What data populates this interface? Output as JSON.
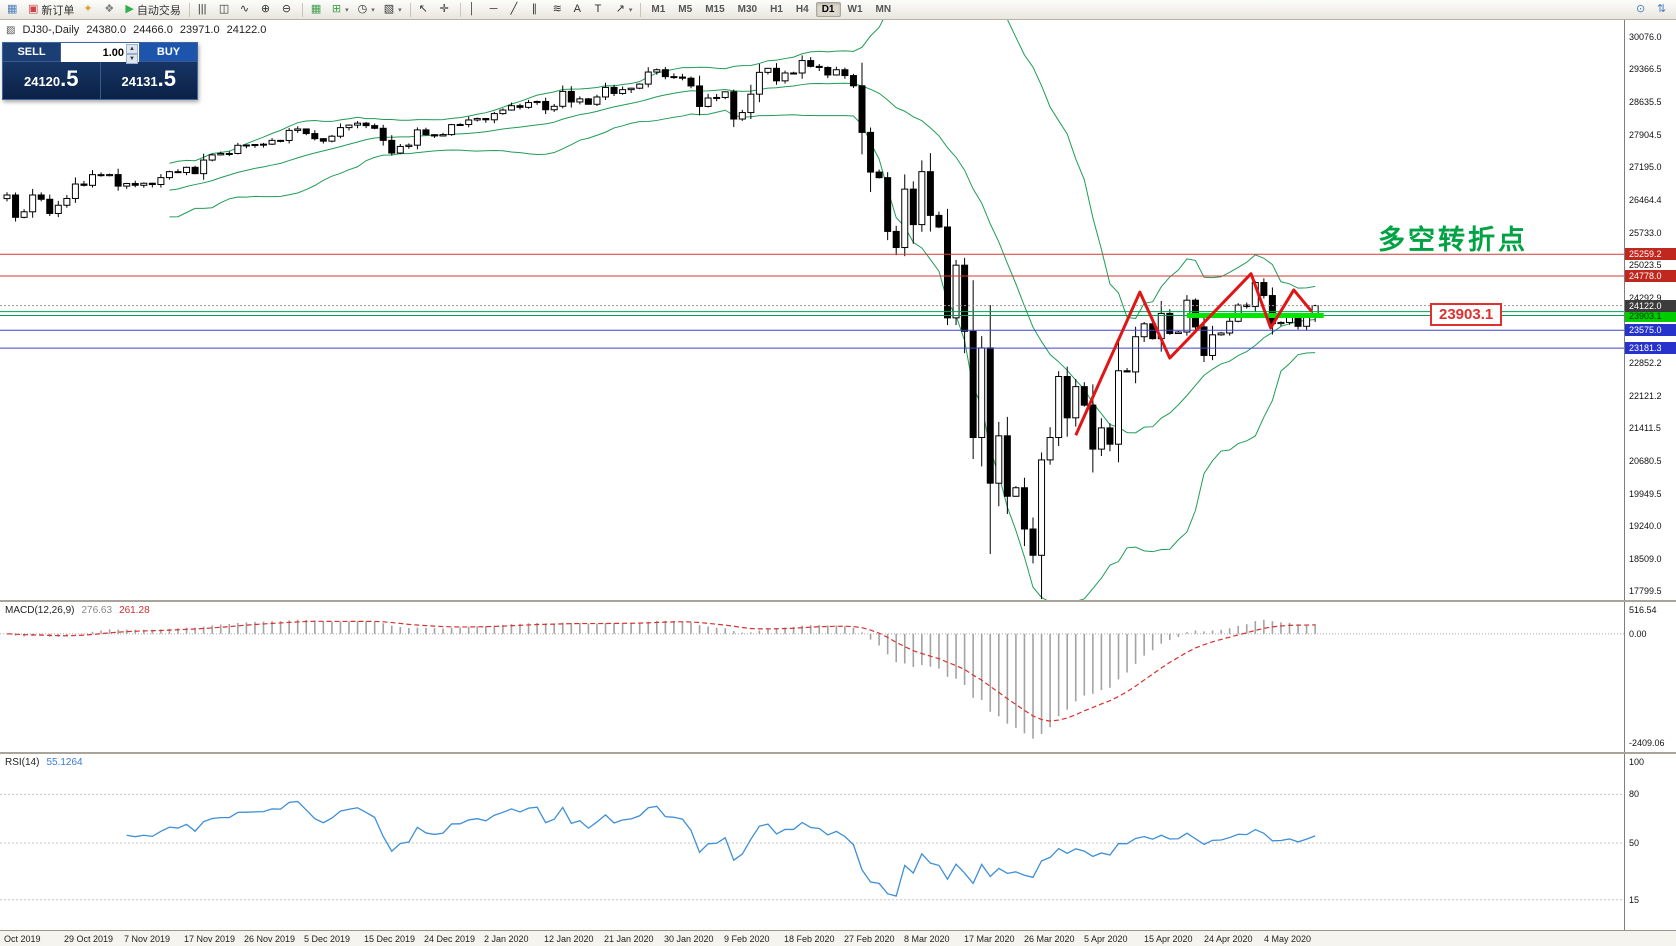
{
  "icons": {
    "up": "▲",
    "down": "▼",
    "caret": "▾",
    "chart_header": "▨"
  },
  "toolbar": {
    "groups": [
      {
        "items": [
          {
            "name": "chart-window-icon",
            "glyph": "▦",
            "c": "#4a7ebb"
          },
          {
            "name": "new-order-button",
            "glyph": "▣",
            "c": "#c44",
            "label": "新订单"
          },
          {
            "name": "metaeditor-icon",
            "glyph": "✦",
            "c": "#d9a42a"
          },
          {
            "name": "terminal-icon",
            "glyph": "❖",
            "c": "#7d7d7d"
          },
          {
            "name": "autotrading-button",
            "glyph": "▶",
            "c": "#2fae4a",
            "label": "自动交易"
          }
        ]
      },
      {
        "items": [
          {
            "name": "bars-chart-icon",
            "glyph": "|||"
          },
          {
            "name": "candlestick-chart-icon",
            "glyph": "◫"
          },
          {
            "name": "line-chart-icon",
            "glyph": "∿"
          },
          {
            "name": "zoom-in-icon",
            "glyph": "⊕"
          },
          {
            "name": "zoom-out-icon",
            "glyph": "⊖"
          }
        ]
      },
      {
        "items": [
          {
            "name": "auto-arrange-icon",
            "glyph": "▦",
            "c": "#3f9e4d"
          },
          {
            "name": "indicators-button",
            "glyph": "⊞",
            "c": "#3f9e4d",
            "caret": true
          },
          {
            "name": "periods-button",
            "glyph": "◷",
            "caret": true
          },
          {
            "name": "templates-button",
            "glyph": "▧",
            "caret": true
          }
        ]
      },
      {
        "items": [
          {
            "name": "cursor-icon",
            "glyph": "↖"
          },
          {
            "name": "crosshair-icon",
            "glyph": "✛"
          }
        ]
      },
      {
        "items": [
          {
            "name": "vertical-line-tool",
            "glyph": "│"
          },
          {
            "name": "horizontal-line-tool",
            "glyph": "─"
          },
          {
            "name": "trendline-tool",
            "glyph": "╱"
          },
          {
            "name": "channel-tool",
            "glyph": "∥"
          },
          {
            "name": "fibonacci-tool",
            "glyph": "≋"
          },
          {
            "name": "text-tool",
            "glyph": "A"
          },
          {
            "name": "label-tool",
            "glyph": "T"
          },
          {
            "name": "arrows-tool",
            "glyph": "↗",
            "caret": true
          }
        ]
      }
    ],
    "timeframes": [
      "M1",
      "M5",
      "M15",
      "M30",
      "H1",
      "H4",
      "D1",
      "W1",
      "MN"
    ],
    "active_timeframe": "D1",
    "right_icons": [
      {
        "name": "search-icon",
        "glyph": "⊙",
        "c": "#4a7ebb"
      },
      {
        "name": "connection-icon",
        "glyph": "⇅",
        "c": "#4a7ebb"
      }
    ]
  },
  "chart": {
    "title": "DJ30-,Daily",
    "ohlc": {
      "open": "24380.0",
      "high": "24466.0",
      "low": "23971.0",
      "close": "24122.0"
    },
    "trade_widget": {
      "sell_label": "SELL",
      "buy_label": "BUY",
      "volume": "1.00",
      "sell_price_main": "24120",
      "sell_price_pips": ".5",
      "buy_price_main": "24131",
      "buy_price_pips": ".5"
    },
    "annotations": {
      "turning_point_text": "多空转折点",
      "support_label": "23903.1"
    }
  },
  "chart_data": [
    {
      "type": "candlestick",
      "symbol": "DJ30-",
      "timeframe": "Daily",
      "y_range": [
        17600,
        30450
      ],
      "closes": [
        26573,
        26078,
        26201,
        26573,
        26478,
        26164,
        26346,
        26496,
        26816,
        26787,
        27024,
        27001,
        27025,
        26770,
        26827,
        26788,
        26833,
        26805,
        26958,
        27090,
        27071,
        27186,
        27046,
        27347,
        27462,
        27492,
        27493,
        27674,
        27681,
        27691,
        27699,
        27783,
        27781,
        28004,
        28036,
        27934,
        27821,
        27766,
        27875,
        28066,
        28121,
        28164,
        28110,
        28051,
        27783,
        27502,
        27649,
        27677,
        28015,
        27909,
        27881,
        27911,
        28132,
        28135,
        28235,
        28267,
        28239,
        28376,
        28455,
        28551,
        28515,
        28621,
        28645,
        28462,
        28538,
        28868,
        28634,
        28703,
        28583,
        28745,
        28956,
        28823,
        28907,
        28939,
        29030,
        29297,
        29348,
        29196,
        29186,
        29160,
        28989,
        28535,
        28722,
        28734,
        28859,
        28256,
        28399,
        28807,
        29290,
        29379,
        29102,
        29276,
        29276,
        29551,
        29423,
        29398,
        29232,
        29348,
        29219,
        28992,
        27960,
        27081,
        26957,
        25766,
        25409,
        26703,
        25917,
        27090,
        26121,
        25864,
        23851,
        25018,
        23553,
        21200,
        23185,
        20188,
        21237,
        19898,
        20087,
        19173,
        18591,
        20704,
        21200,
        22552,
        21636,
        22327,
        21917,
        20943,
        21413,
        21052,
        22679,
        22653,
        23433,
        23719,
        23390,
        23949,
        23504,
        23537,
        24242,
        23650,
        23018,
        23475,
        23515,
        23775,
        24133,
        24101,
        24633,
        24345,
        23723,
        23749,
        23883,
        23664,
        23875,
        24122
      ],
      "bollinger": {
        "period": 20,
        "deviation": 2,
        "color": "#1f9d55"
      },
      "levels": [
        {
          "price": 25259.2,
          "label": "25259.2",
          "color": "#d43a3a",
          "tag_bg": "#c0271f",
          "tag_fg": "#ffffff"
        },
        {
          "price": 24778.0,
          "label": "24778.0",
          "color": "#d43a3a",
          "tag_bg": "#c0271f",
          "tag_fg": "#ffffff"
        },
        {
          "price": 23990.0,
          "label": null,
          "color": "#00a050"
        },
        {
          "price": 23903.1,
          "label": "23903.1",
          "color": "#00a050",
          "tag_bg": "#00cc00",
          "tag_fg": "#003300"
        },
        {
          "price": 23575.0,
          "label": "23575.0",
          "color": "#3a46cc",
          "tag_bg": "#2732cc",
          "tag_fg": "#ffffff"
        },
        {
          "price": 23181.3,
          "label": "23181.3",
          "color": "#3a46cc",
          "tag_bg": "#2732cc",
          "tag_fg": "#ffffff"
        }
      ],
      "current_price": {
        "value": 24122.0,
        "label": "24122.0",
        "tag_bg": "#3c3c3c",
        "tag_fg": "#ffffff"
      },
      "bold_segment": {
        "price": 23903.1,
        "from_bar": 138,
        "to_bar": 154,
        "color": "#00e600"
      },
      "zigzag": [
        [
          125,
          21250
        ],
        [
          132.5,
          24420
        ],
        [
          136,
          22960
        ],
        [
          145.5,
          24830
        ],
        [
          147.8,
          23630
        ],
        [
          150.5,
          24470
        ],
        [
          152.6,
          23990
        ]
      ],
      "zigzag_color": "#e01616",
      "y_axis_labels": [
        "30076.0",
        "29366.5",
        "28635.5",
        "27904.5",
        "27195.0",
        "26464.4",
        "25733.0",
        "25023.5",
        "24292.9",
        "22852.2",
        "22121.2",
        "21411.5",
        "20680.5",
        "19949.5",
        "19240.0",
        "18509.0",
        "17799.5"
      ],
      "x_labels": [
        "Oct 2019",
        "29 Oct 2019",
        "7 Nov 2019",
        "17 Nov 2019",
        "26 Nov 2019",
        "5 Dec 2019",
        "15 Dec 2019",
        "24 Dec 2019",
        "2 Jan 2020",
        "12 Jan 2020",
        "21 Jan 2020",
        "30 Jan 2020",
        "9 Feb 2020",
        "18 Feb 2020",
        "27 Feb 2020",
        "8 Mar 2020",
        "17 Mar 2020",
        "26 Mar 2020",
        "5 Apr 2020",
        "15 Apr 2020",
        "24 Apr 2020",
        "4 May 2020"
      ]
    },
    {
      "type": "macd-histogram",
      "label": "MACD(12,26,9)",
      "value_main": "276.63",
      "value_signal": "261.28",
      "params": [
        12,
        26,
        9
      ],
      "y_range": [
        -2600,
        700
      ],
      "y_labels": [
        {
          "v": 516.54,
          "t": "516.54"
        },
        {
          "v": 0,
          "t": "0.00"
        },
        {
          "v": -2409.06,
          "t": "-2409.06"
        }
      ],
      "histogram_color": "#a3a3a3",
      "signal_color": "#d93030"
    },
    {
      "type": "line",
      "label": "RSI(14)",
      "value_text": "55.1264",
      "period": 14,
      "levels": [
        80,
        50,
        15
      ],
      "y_range": [
        0,
        100
      ],
      "y_labels": [
        {
          "v": 100,
          "t": "100"
        },
        {
          "v": 80,
          "t": "80"
        },
        {
          "v": 50,
          "t": "50"
        },
        {
          "v": 15,
          "t": "15"
        }
      ],
      "line_color": "#3e8fd8"
    }
  ]
}
